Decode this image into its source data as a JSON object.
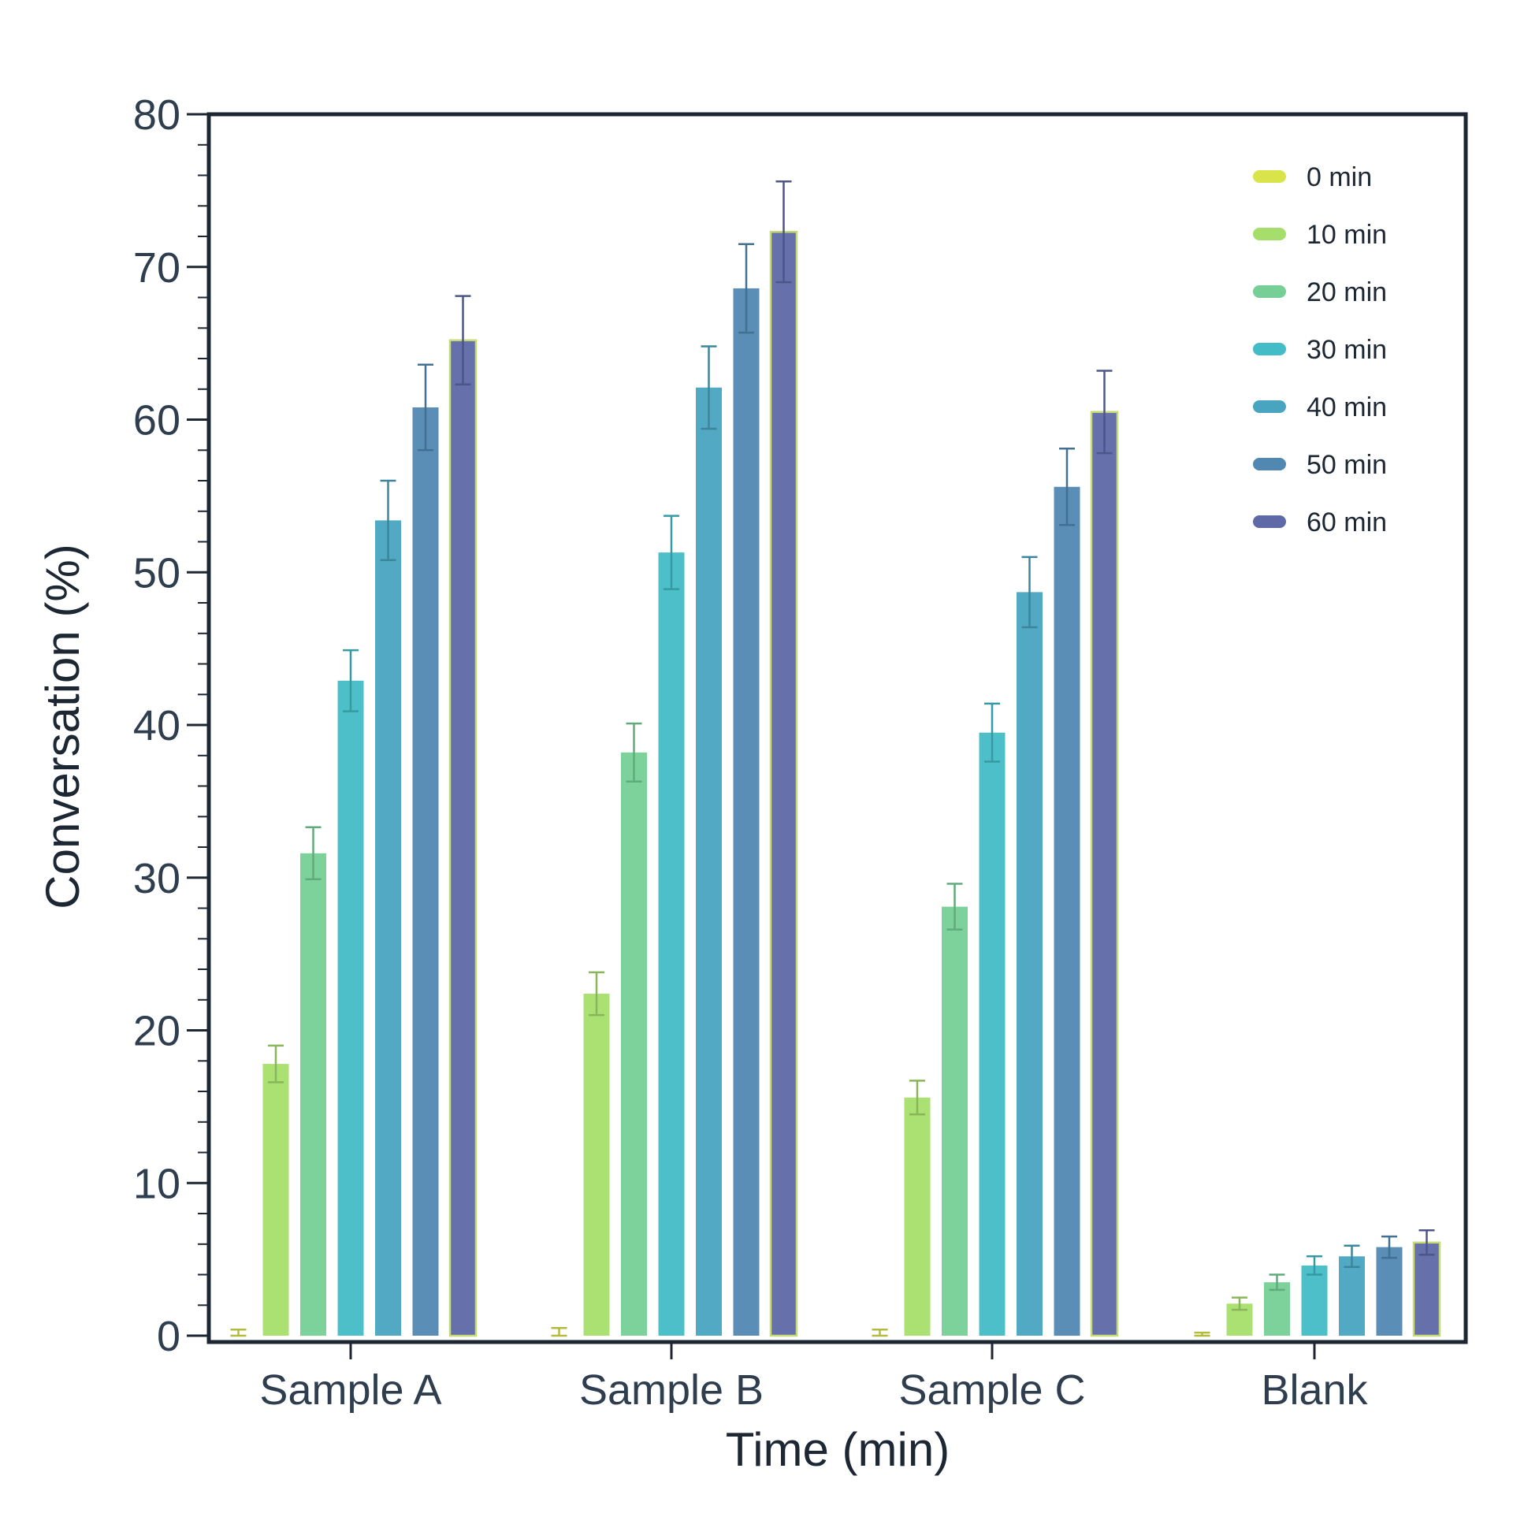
{
  "chart_data": {
    "type": "bar",
    "title": "",
    "xlabel": "Time (min)",
    "ylabel": "Conversation (%)",
    "ylim": [
      0,
      80
    ],
    "yticks": [
      "0",
      "10",
      "20",
      "30",
      "40",
      "50",
      "60",
      "70",
      "80"
    ],
    "categories": [
      "Sample A",
      "Sample B",
      "Sample C",
      "Blank"
    ],
    "legend_position": "top-right",
    "grid": false,
    "series": [
      {
        "name": "0 min",
        "color": "#d9e44a",
        "values": [
          0,
          0,
          0,
          0
        ],
        "errors": [
          0.4,
          0.5,
          0.4,
          0.2
        ]
      },
      {
        "name": "10 min",
        "color": "#a6de6c",
        "values": [
          17.8,
          22.4,
          15.6,
          2.1
        ],
        "errors": [
          1.2,
          1.4,
          1.1,
          0.4
        ]
      },
      {
        "name": "20 min",
        "color": "#76cf96",
        "values": [
          31.6,
          38.2,
          28.1,
          3.5
        ],
        "errors": [
          1.7,
          1.9,
          1.5,
          0.5
        ]
      },
      {
        "name": "30 min",
        "color": "#42bcc6",
        "values": [
          42.9,
          51.3,
          39.5,
          4.6
        ],
        "errors": [
          2.0,
          2.4,
          1.9,
          0.6
        ]
      },
      {
        "name": "40 min",
        "color": "#49a4c0",
        "values": [
          53.4,
          62.1,
          48.7,
          5.2
        ],
        "errors": [
          2.6,
          2.7,
          2.3,
          0.7
        ]
      },
      {
        "name": "50 min",
        "color": "#5188b2",
        "values": [
          60.8,
          68.6,
          55.6,
          5.8
        ],
        "errors": [
          2.8,
          2.9,
          2.5,
          0.7
        ]
      },
      {
        "name": "60 min",
        "color": "#5e69a8",
        "values": [
          65.2,
          72.3,
          60.5,
          6.1
        ],
        "errors": [
          2.9,
          3.3,
          2.7,
          0.8
        ]
      }
    ]
  }
}
